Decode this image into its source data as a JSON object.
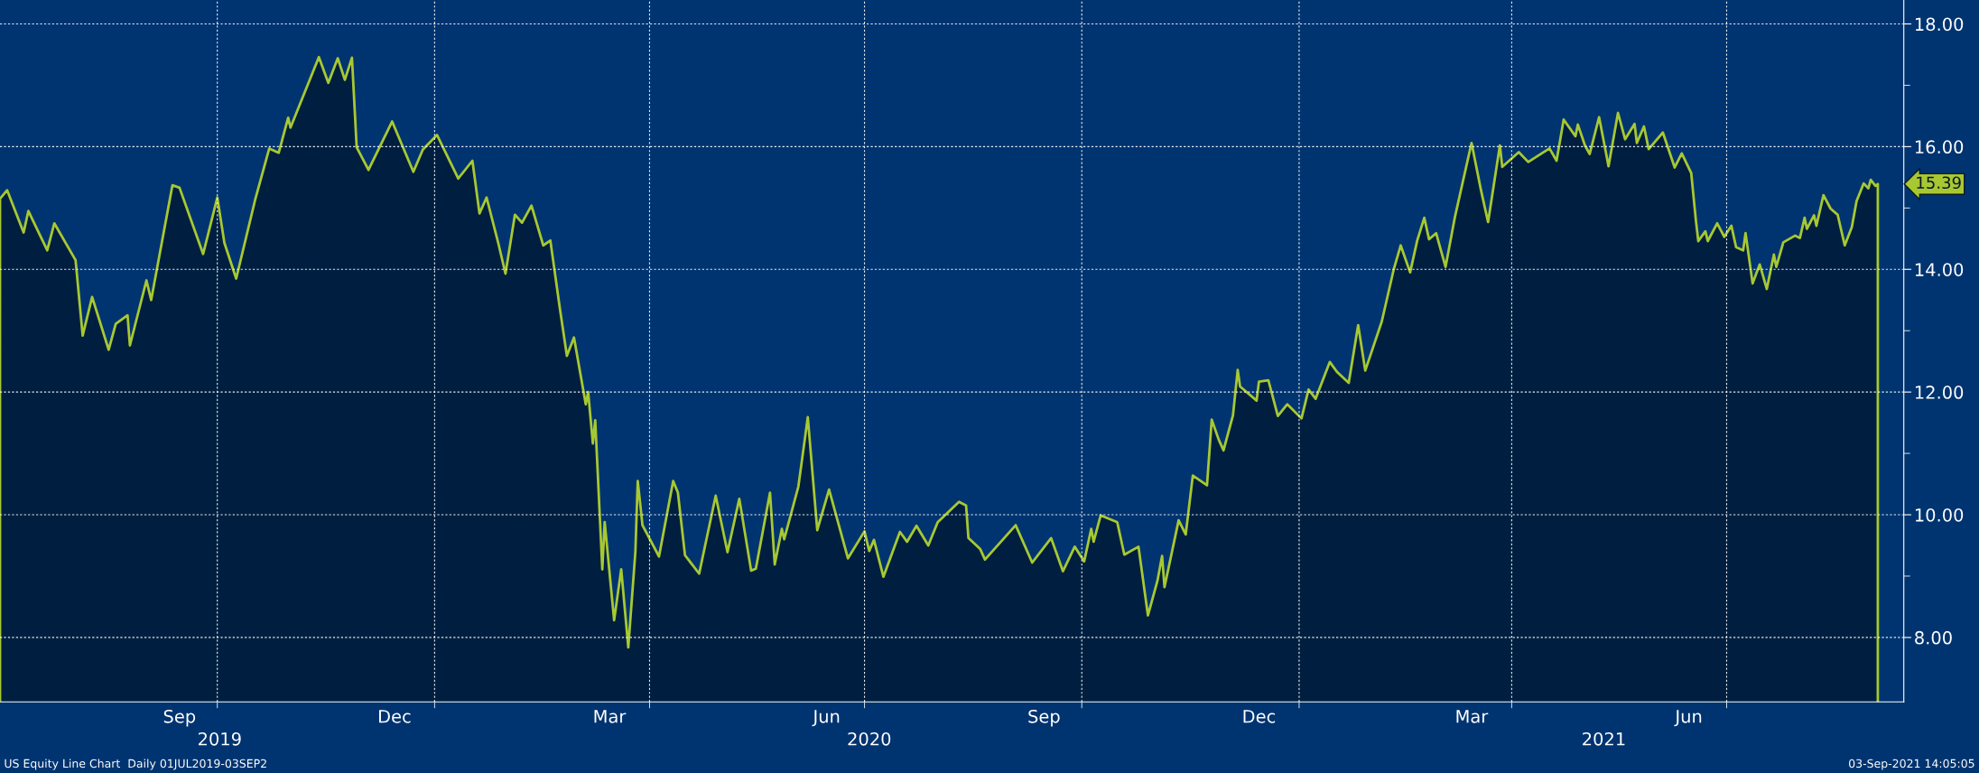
{
  "chart_data": {
    "type": "area",
    "x": [
      "2019-07-01",
      "2019-07-04",
      "2019-07-11",
      "2019-07-13",
      "2019-07-21",
      "2019-07-24",
      "2019-08-02",
      "2019-08-05",
      "2019-08-09",
      "2019-08-16",
      "2019-08-19",
      "2019-08-24",
      "2019-08-25",
      "2019-09-01",
      "2019-09-03",
      "2019-09-12",
      "2019-09-15",
      "2019-09-25",
      "2019-10-01",
      "2019-10-04",
      "2019-10-09",
      "2019-10-17",
      "2019-10-23",
      "2019-10-27",
      "2019-10-31",
      "2019-11-01",
      "2019-11-13",
      "2019-11-17",
      "2019-11-21",
      "2019-11-24",
      "2019-11-27",
      "2019-11-29",
      "2019-12-04",
      "2019-12-14",
      "2019-12-23",
      "2019-12-27",
      "2020-01-02",
      "2020-01-11",
      "2020-01-17",
      "2020-01-20",
      "2020-01-23",
      "2020-01-28",
      "2020-01-31",
      "2020-02-04",
      "2020-02-07",
      "2020-02-11",
      "2020-02-16",
      "2020-02-19",
      "2020-02-23",
      "2020-02-26",
      "2020-02-29",
      "2020-03-05",
      "2020-03-06",
      "2020-03-08",
      "2020-03-09",
      "2020-03-12",
      "2020-03-13",
      "2020-03-17",
      "2020-03-20",
      "2020-03-23",
      "2020-03-26",
      "2020-03-27",
      "2020-03-29",
      "2020-04-05",
      "2020-04-11",
      "2020-04-13",
      "2020-04-16",
      "2020-04-22",
      "2020-04-29",
      "2020-05-04",
      "2020-05-09",
      "2020-05-14",
      "2020-05-16",
      "2020-05-22",
      "2020-05-24",
      "2020-05-27",
      "2020-05-28",
      "2020-06-03",
      "2020-06-07",
      "2020-06-11",
      "2020-06-16",
      "2020-06-24",
      "2020-07-01",
      "2020-07-03",
      "2020-07-05",
      "2020-07-09",
      "2020-07-16",
      "2020-07-19",
      "2020-07-23",
      "2020-07-28",
      "2020-08-01",
      "2020-08-10",
      "2020-08-13",
      "2020-08-14",
      "2020-08-19",
      "2020-08-21",
      "2020-09-03",
      "2020-09-10",
      "2020-09-18",
      "2020-09-23",
      "2020-09-28",
      "2020-10-02",
      "2020-10-05",
      "2020-10-06",
      "2020-10-09",
      "2020-10-16",
      "2020-10-19",
      "2020-10-25",
      "2020-10-29",
      "2020-11-02",
      "2020-11-04",
      "2020-11-05",
      "2020-11-11",
      "2020-11-14",
      "2020-11-17",
      "2020-11-23",
      "2020-11-25",
      "2020-11-28",
      "2020-11-30",
      "2020-12-04",
      "2020-12-06",
      "2020-12-07",
      "2020-12-14",
      "2020-12-15",
      "2020-12-19",
      "2020-12-23",
      "2020-12-27",
      "2021-01-02",
      "2021-01-05",
      "2021-01-08",
      "2021-01-14",
      "2021-01-17",
      "2021-01-22",
      "2021-01-26",
      "2021-01-29",
      "2021-02-05",
      "2021-02-10",
      "2021-02-13",
      "2021-02-17",
      "2021-02-20",
      "2021-02-23",
      "2021-02-25",
      "2021-02-28",
      "2021-03-04",
      "2021-03-08",
      "2021-03-15",
      "2021-03-19",
      "2021-03-22",
      "2021-03-27",
      "2021-03-28",
      "2021-04-04",
      "2021-04-08",
      "2021-04-17",
      "2021-04-20",
      "2021-04-23",
      "2021-04-28",
      "2021-04-29",
      "2021-05-02",
      "2021-05-04",
      "2021-05-08",
      "2021-05-12",
      "2021-05-16",
      "2021-05-19",
      "2021-05-23",
      "2021-05-24",
      "2021-05-27",
      "2021-05-29",
      "2021-06-04",
      "2021-06-09",
      "2021-06-12",
      "2021-06-16",
      "2021-06-18",
      "2021-06-19",
      "2021-06-22",
      "2021-06-23",
      "2021-06-27",
      "2021-06-30",
      "2021-07-03",
      "2021-07-05",
      "2021-07-08",
      "2021-07-09",
      "2021-07-12",
      "2021-07-15",
      "2021-07-18",
      "2021-07-21",
      "2021-07-22",
      "2021-07-25",
      "2021-07-30",
      "2021-08-01",
      "2021-08-03",
      "2021-08-04",
      "2021-08-07",
      "2021-08-08",
      "2021-08-11",
      "2021-08-14",
      "2021-08-17",
      "2021-08-20",
      "2021-08-23",
      "2021-08-25",
      "2021-08-28",
      "2021-08-30",
      "2021-08-31",
      "2021-09-02",
      "2021-09-03"
    ],
    "series": [
      {
        "color": "#a8c832",
        "values": [
          15.15,
          15.29,
          14.6,
          14.95,
          14.31,
          14.75,
          14.15,
          12.92,
          13.55,
          12.69,
          13.11,
          13.25,
          12.76,
          13.82,
          13.5,
          15.37,
          15.33,
          14.25,
          15.17,
          14.43,
          13.85,
          15.13,
          15.97,
          15.9,
          16.47,
          16.31,
          17.46,
          17.04,
          17.44,
          17.09,
          17.45,
          15.99,
          15.62,
          16.41,
          15.59,
          15.95,
          16.19,
          15.48,
          15.77,
          14.91,
          15.17,
          14.42,
          13.93,
          14.89,
          14.76,
          15.04,
          14.39,
          14.47,
          13.37,
          12.59,
          12.89,
          11.8,
          12.0,
          11.16,
          11.54,
          9.11,
          9.88,
          8.28,
          9.11,
          7.84,
          9.4,
          10.55,
          9.83,
          9.32,
          10.55,
          10.36,
          9.34,
          9.04,
          10.31,
          9.39,
          10.26,
          9.09,
          9.12,
          10.36,
          9.19,
          9.77,
          9.6,
          10.46,
          11.59,
          9.75,
          10.41,
          9.29,
          9.73,
          9.41,
          9.59,
          8.99,
          9.72,
          9.56,
          9.82,
          9.5,
          9.88,
          10.21,
          10.15,
          9.62,
          9.44,
          9.27,
          9.83,
          9.22,
          9.62,
          9.08,
          9.48,
          9.24,
          9.77,
          9.56,
          9.99,
          9.88,
          9.35,
          9.48,
          8.36,
          8.92,
          9.33,
          8.82,
          9.91,
          9.68,
          10.64,
          10.48,
          11.55,
          11.22,
          11.05,
          11.62,
          12.36,
          12.09,
          11.86,
          12.17,
          12.19,
          11.61,
          11.8,
          11.57,
          12.04,
          11.89,
          12.49,
          12.33,
          12.15,
          13.09,
          12.35,
          13.15,
          13.99,
          14.39,
          13.95,
          14.47,
          14.84,
          14.49,
          14.59,
          14.04,
          14.86,
          16.06,
          15.29,
          14.77,
          16.02,
          15.67,
          15.91,
          15.75,
          15.97,
          15.77,
          16.44,
          16.17,
          16.36,
          16.02,
          15.88,
          16.48,
          15.68,
          16.55,
          16.12,
          16.37,
          16.06,
          16.33,
          15.96,
          16.23,
          15.66,
          15.89,
          15.57,
          14.79,
          14.46,
          14.62,
          14.46,
          14.75,
          14.53,
          14.71,
          14.36,
          14.31,
          14.59,
          13.77,
          14.08,
          13.68,
          14.24,
          14.04,
          14.44,
          14.55,
          14.51,
          14.84,
          14.66,
          14.88,
          14.71,
          15.21,
          14.99,
          14.89,
          14.39,
          14.69,
          15.11,
          15.4,
          15.32,
          15.46,
          15.36,
          15.39
        ]
      }
    ],
    "xlim": [
      "2019-07-01",
      "2021-09-14"
    ],
    "xticks": [
      {
        "value": "2019-09-15",
        "label": "Sep"
      },
      {
        "value": "2019-12-15",
        "label": "Dec"
      },
      {
        "value": "2020-03-15",
        "label": "Mar"
      },
      {
        "value": "2020-06-15",
        "label": "Jun"
      },
      {
        "value": "2020-09-15",
        "label": "Sep"
      },
      {
        "value": "2020-12-15",
        "label": "Dec"
      },
      {
        "value": "2021-03-15",
        "label": "Mar"
      },
      {
        "value": "2021-06-15",
        "label": "Jun"
      },
      {
        "value": "2019-10-01",
        "label": null
      },
      {
        "value": "2020-01-01",
        "label": null
      },
      {
        "value": "2020-04-01",
        "label": null
      },
      {
        "value": "2020-07-01",
        "label": null
      },
      {
        "value": "2020-10-01",
        "label": null
      },
      {
        "value": "2021-01-01",
        "label": null
      },
      {
        "value": "2021-04-01",
        "label": null
      },
      {
        "value": "2021-07-01",
        "label": null
      }
    ],
    "x2lim": [
      "2019-07-01",
      "2021-09-14"
    ],
    "x2ticks": [
      {
        "value": "2019-10-02",
        "label": "2019"
      },
      {
        "value": "2020-07-03",
        "label": "2020"
      },
      {
        "value": "2021-05-10",
        "label": "2021"
      }
    ],
    "ylim": [
      6.95,
      18.39
    ],
    "yticks": [
      {
        "value": 8,
        "label": "8.00"
      },
      {
        "value": 9,
        "label": null
      },
      {
        "value": 10,
        "label": "10.00"
      },
      {
        "value": 11,
        "label": null
      },
      {
        "value": 12,
        "label": "12.00"
      },
      {
        "value": 13,
        "label": null
      },
      {
        "value": 14,
        "label": "14.00"
      },
      {
        "value": 15,
        "label": null
      },
      {
        "value": 16,
        "label": "16.00"
      },
      {
        "value": 17,
        "label": null
      },
      {
        "value": 18,
        "label": "18.00"
      }
    ],
    "grid": true,
    "annotations": [
      "US Equity Line Chart  Daily 01JUL2019-03SEP2",
      "03-Sep-2021 14:05:05",
      {
        "text": "15.39",
        "x": "2021-09-03",
        "y": 15.39
      }
    ]
  }
}
